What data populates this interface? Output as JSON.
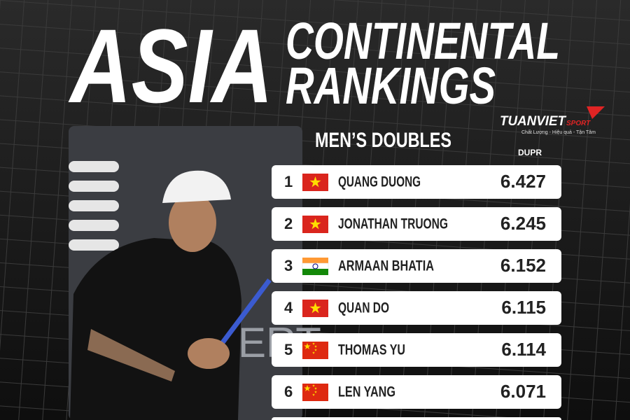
{
  "header": {
    "title_big": "ASIA",
    "title_line1": "CONTINENTAL",
    "title_line2": "RANKINGS"
  },
  "brand": {
    "name": "TUANVIET",
    "sub": "SPORT",
    "tagline": "Chất Lượng - Hiệu quả - Tận Tâm"
  },
  "table": {
    "title": "MEN’S DOUBLES",
    "column": "DUPR",
    "rows": [
      [
        1,
        "QUANG DUONG",
        6.427
      ],
      [
        2,
        "JONATHAN TRUONG",
        6.245
      ],
      [
        3,
        "ARMAAN BHATIA",
        6.152
      ],
      [
        4,
        "QUAN DO",
        6.115
      ],
      [
        5,
        "THOMAS YU",
        6.114
      ],
      [
        6,
        "LEN YANG",
        6.071
      ]
    ]
  }
}
